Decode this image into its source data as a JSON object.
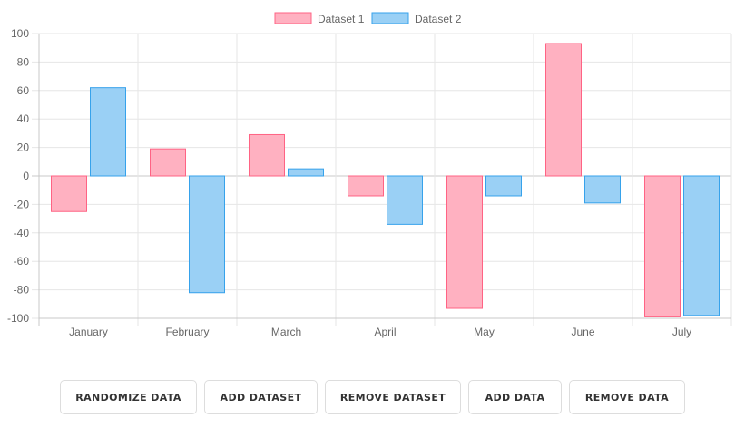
{
  "chart_data": {
    "type": "bar",
    "categories": [
      "January",
      "February",
      "March",
      "April",
      "May",
      "June",
      "July"
    ],
    "series": [
      {
        "name": "Dataset 1",
        "values": [
          -25,
          19,
          29,
          -14,
          -93,
          93,
          -99
        ],
        "fill": "#ffb1c1",
        "stroke": "#ff6384"
      },
      {
        "name": "Dataset 2",
        "values": [
          62,
          -82,
          5,
          -34,
          -14,
          -19,
          -98
        ],
        "fill": "#9ad0f5",
        "stroke": "#36a2eb"
      }
    ],
    "yticks": [
      "100",
      "80",
      "60",
      "40",
      "20",
      "0",
      "-20",
      "-40",
      "-60",
      "-80",
      "-100"
    ],
    "ylim": [
      -100,
      100
    ],
    "grid": true,
    "legend_position": "top"
  },
  "buttons": {
    "randomize": "RANDOMIZE DATA",
    "add_dataset": "ADD DATASET",
    "remove_dataset": "REMOVE DATASET",
    "add_data": "ADD DATA",
    "remove_data": "REMOVE DATA"
  }
}
